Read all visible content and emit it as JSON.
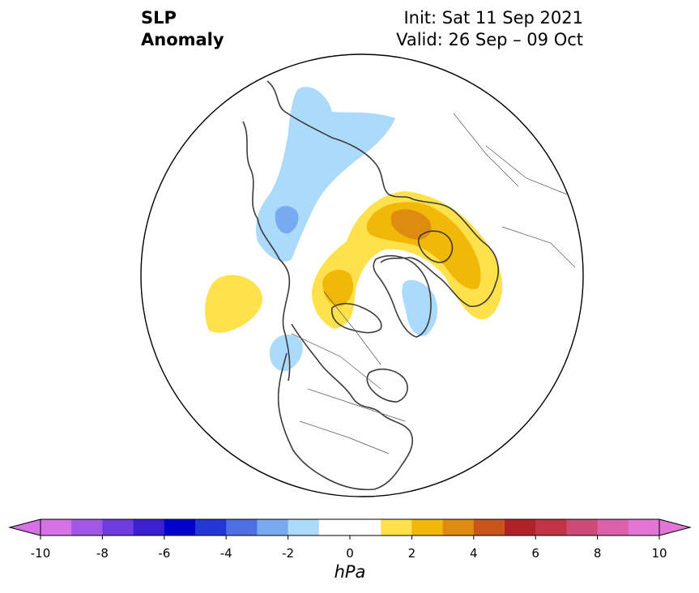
{
  "title": {
    "left_line1": "SLP",
    "left_line2": "Anomaly",
    "init": "Init: Sat 11 Sep 2021",
    "valid": "Valid: 26 Sep – 09 Oct"
  },
  "colorbar": {
    "unit": "hPa",
    "ticks": [
      "-10",
      "-8",
      "-6",
      "-4",
      "-2",
      "0",
      "2",
      "4",
      "6",
      "8",
      "10"
    ],
    "colors": [
      "#d572e6",
      "#a257e6",
      "#6e3ddc",
      "#3b1fd2",
      "#0000cc",
      "#2337d6",
      "#4e6ee4",
      "#77aaf0",
      "#acdafb",
      "#ffffff",
      "#ffffff",
      "#ffe14d",
      "#f2b807",
      "#de8c10",
      "#c8551b",
      "#b02226",
      "#c23346",
      "#cd4b79",
      "#db62aa",
      "#e375d6"
    ],
    "arrow_left_color": "#d572e6",
    "arrow_right_color": "#e375d6"
  },
  "map_colors": {
    "light_blue": "#acdafb",
    "mid_blue": "#77aaf0",
    "light_yellow": "#ffe14d",
    "gold": "#f2b807",
    "orange": "#de8c10",
    "coast": "#3a3a3a",
    "border": "#555555"
  }
}
